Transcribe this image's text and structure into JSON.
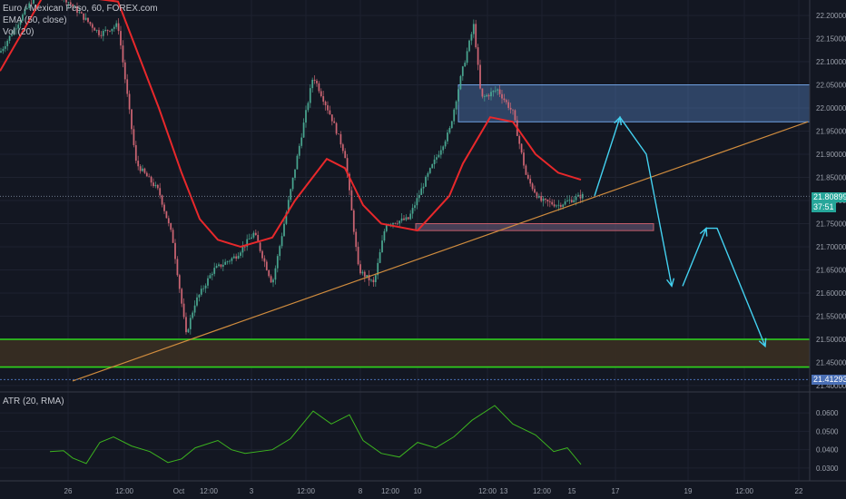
{
  "header": {
    "symbol_line": "Euro / Mexican Peso, 60, FOREX.com",
    "ema_label": "EMA (50, close)",
    "vol_label": "Vol (20)"
  },
  "atr_pane": {
    "label": "ATR (20, RMA)"
  },
  "price_axis": {
    "ticks": [
      "22.20000",
      "22.15000",
      "22.10000",
      "22.05000",
      "22.00000",
      "21.95000",
      "21.90000",
      "21.85000",
      "21.80000",
      "21.75000",
      "21.70000",
      "21.65000",
      "21.60000",
      "21.55000",
      "21.50000",
      "21.45000",
      "21.40000"
    ],
    "current_price": "21.80899",
    "countdown": "37:51",
    "dashed_level": "21.41293"
  },
  "atr_axis": {
    "ticks": [
      "0.0600",
      "0.0500",
      "0.0400",
      "0.0300"
    ]
  },
  "time_axis": {
    "ticks": [
      "26",
      "12:00",
      "Oct",
      "12:00",
      "3",
      "12:00",
      "8",
      "12:00",
      "10",
      "12:00",
      "13",
      "12:00",
      "15",
      "17",
      "19",
      "12:00",
      "22"
    ]
  },
  "colors": {
    "background": "#131722",
    "candle_up": "#26a69a",
    "candle_down": "#ef5350",
    "ema": "#e8282b",
    "trendline": "#d08c3e",
    "support_zone_border": "#2ed81c",
    "resistance_zone_fill": "#4f7bb5",
    "projection_arrows": "#43d1f0",
    "atr_line": "#3cb31f",
    "current_price_tag": "#26a69a",
    "dashed_level_tag": "#4a6fb5"
  },
  "chart_data": {
    "type": "line",
    "title": "Euro / Mexican Peso, 60, FOREX.com",
    "price_range": [
      21.4,
      22.2
    ],
    "atr_range": [
      0.027,
      0.065
    ],
    "x": [
      "26",
      "12:00",
      "Oct",
      "12:00",
      "3",
      "12:00",
      "8",
      "12:00",
      "10",
      "12:00",
      "13",
      "12:00",
      "15",
      "17",
      "19",
      "12:00",
      "22"
    ],
    "series": [
      {
        "name": "EMA (50, close)",
        "values": [
          [
            0,
            22.08
          ],
          [
            50,
            22.25
          ],
          [
            130,
            22.23
          ],
          [
            175,
            22.0
          ],
          [
            200,
            21.86
          ],
          [
            220,
            21.76
          ],
          [
            240,
            21.715
          ],
          [
            265,
            21.7
          ],
          [
            300,
            21.72
          ],
          [
            325,
            21.8
          ],
          [
            360,
            21.89
          ],
          [
            380,
            21.87
          ],
          [
            400,
            21.79
          ],
          [
            420,
            21.75
          ],
          [
            460,
            21.735
          ],
          [
            495,
            21.81
          ],
          [
            510,
            21.88
          ],
          [
            540,
            21.98
          ],
          [
            565,
            21.97
          ],
          [
            590,
            21.9
          ],
          [
            615,
            21.86
          ],
          [
            640,
            21.845
          ]
        ]
      },
      {
        "name": "Price",
        "values": [
          [
            0,
            22.12
          ],
          [
            50,
            22.28
          ],
          [
            110,
            22.16
          ],
          [
            130,
            22.18
          ],
          [
            150,
            21.88
          ],
          [
            175,
            21.82
          ],
          [
            190,
            21.72
          ],
          [
            205,
            21.51
          ],
          [
            215,
            21.58
          ],
          [
            235,
            21.65
          ],
          [
            260,
            21.68
          ],
          [
            280,
            21.73
          ],
          [
            300,
            21.62
          ],
          [
            320,
            21.82
          ],
          [
            345,
            22.07
          ],
          [
            365,
            21.98
          ],
          [
            380,
            21.9
          ],
          [
            395,
            21.65
          ],
          [
            412,
            21.62
          ],
          [
            425,
            21.75
          ],
          [
            450,
            21.76
          ],
          [
            470,
            21.85
          ],
          [
            495,
            21.95
          ],
          [
            508,
            22.07
          ],
          [
            522,
            22.18
          ],
          [
            530,
            22.02
          ],
          [
            548,
            22.04
          ],
          [
            565,
            21.99
          ],
          [
            580,
            21.85
          ],
          [
            595,
            21.8
          ],
          [
            615,
            21.79
          ],
          [
            640,
            21.81
          ]
        ]
      },
      {
        "name": "ATR (20, RMA)",
        "values": [
          [
            55,
            0.039
          ],
          [
            70,
            0.0395
          ],
          [
            80,
            0.0355
          ],
          [
            95,
            0.0325
          ],
          [
            110,
            0.044
          ],
          [
            125,
            0.047
          ],
          [
            145,
            0.042
          ],
          [
            165,
            0.039
          ],
          [
            185,
            0.033
          ],
          [
            200,
            0.035
          ],
          [
            215,
            0.041
          ],
          [
            240,
            0.045
          ],
          [
            255,
            0.04
          ],
          [
            270,
            0.038
          ],
          [
            300,
            0.04
          ],
          [
            320,
            0.046
          ],
          [
            345,
            0.061
          ],
          [
            365,
            0.054
          ],
          [
            385,
            0.059
          ],
          [
            400,
            0.045
          ],
          [
            420,
            0.038
          ],
          [
            440,
            0.036
          ],
          [
            460,
            0.044
          ],
          [
            480,
            0.041
          ],
          [
            500,
            0.047
          ],
          [
            520,
            0.056
          ],
          [
            545,
            0.064
          ],
          [
            565,
            0.054
          ],
          [
            590,
            0.048
          ],
          [
            610,
            0.039
          ],
          [
            625,
            0.041
          ],
          [
            640,
            0.032
          ]
        ]
      }
    ],
    "zones": [
      {
        "name": "support",
        "top": 21.5,
        "bottom": 21.44
      },
      {
        "name": "resistance",
        "top": 22.05,
        "bottom": 21.97
      },
      {
        "name": "minor-demand",
        "top": 21.75,
        "bottom": 21.735
      }
    ],
    "trendline": {
      "from": [
        80,
        21.41
      ],
      "to": [
        890,
        21.97
      ]
    },
    "projection": [
      [
        655,
        21.81
      ],
      [
        683,
        21.98
      ],
      [
        712,
        21.9
      ],
      [
        740,
        21.615
      ],
      [
        752,
        21.615
      ],
      [
        778,
        21.74
      ],
      [
        790,
        21.74
      ],
      [
        843,
        21.485
      ]
    ],
    "grid": true,
    "legend": "top-left"
  }
}
